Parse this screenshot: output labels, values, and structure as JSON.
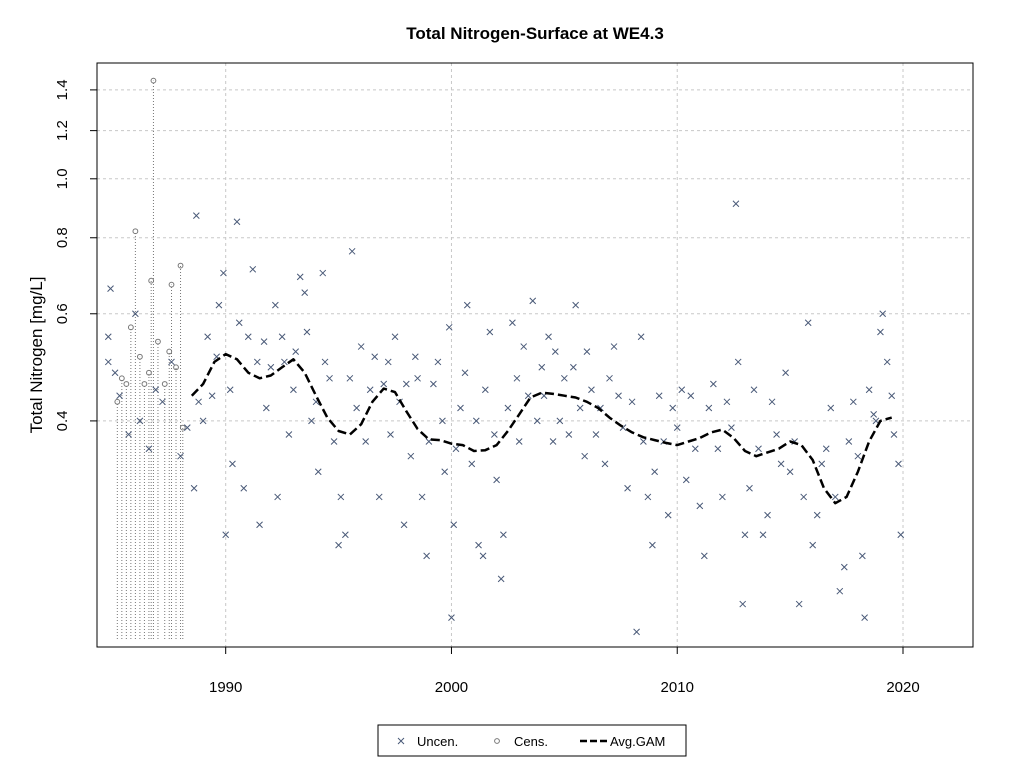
{
  "chart_data": {
    "type": "scatter",
    "title": "Total Nitrogen-Surface at WE4.3",
    "xlabel": "",
    "ylabel": "Total Nitrogen [mg/L]",
    "xlim": [
      1984.3,
      2023.1
    ],
    "ylim": [
      0.17,
      1.55
    ],
    "y_scale": "log",
    "grid": true,
    "x_ticks": [
      1990,
      2000,
      2010,
      2020
    ],
    "y_ticks": [
      0.4,
      0.6,
      0.8,
      1.0,
      1.2,
      1.4
    ],
    "x_tick_labels": [
      "1990",
      "2000",
      "2010",
      "2020"
    ],
    "y_tick_labels": [
      "0.4",
      "0.6",
      "0.8",
      "1.0",
      "1.2",
      "1.4"
    ],
    "legend_position": "bottom-center",
    "legend": [
      {
        "label": "Uncen.",
        "marker": "x",
        "color": "#4a5a78"
      },
      {
        "label": "Cens.",
        "marker": "o",
        "color": "#777777"
      },
      {
        "label": "Avg.GAM",
        "marker": "dashed-line",
        "color": "#000000"
      }
    ],
    "series": [
      {
        "name": "Uncen.",
        "marker": "x",
        "color": "#4a5a78",
        "points": [
          [
            1984.8,
            0.55
          ],
          [
            1984.8,
            0.5
          ],
          [
            1984.9,
            0.66
          ],
          [
            1985.1,
            0.48
          ],
          [
            1985.3,
            0.44
          ],
          [
            1985.7,
            0.38
          ],
          [
            1986.0,
            0.6
          ],
          [
            1986.2,
            0.4
          ],
          [
            1986.6,
            0.36
          ],
          [
            1986.9,
            0.45
          ],
          [
            1987.2,
            0.43
          ],
          [
            1987.6,
            0.5
          ],
          [
            1988.0,
            0.35
          ],
          [
            1988.3,
            0.39
          ],
          [
            1988.6,
            0.31
          ],
          [
            1988.7,
            0.87
          ],
          [
            1988.8,
            0.43
          ],
          [
            1989.0,
            0.4
          ],
          [
            1989.2,
            0.55
          ],
          [
            1989.4,
            0.44
          ],
          [
            1989.6,
            0.51
          ],
          [
            1989.7,
            0.62
          ],
          [
            1989.9,
            0.7
          ],
          [
            1990.0,
            0.26
          ],
          [
            1990.2,
            0.45
          ],
          [
            1990.3,
            0.34
          ],
          [
            1990.5,
            0.85
          ],
          [
            1990.6,
            0.58
          ],
          [
            1990.8,
            0.31
          ],
          [
            1991.0,
            0.55
          ],
          [
            1991.2,
            0.71
          ],
          [
            1991.4,
            0.5
          ],
          [
            1991.5,
            0.27
          ],
          [
            1991.7,
            0.54
          ],
          [
            1991.8,
            0.42
          ],
          [
            1992.0,
            0.49
          ],
          [
            1992.2,
            0.62
          ],
          [
            1992.3,
            0.3
          ],
          [
            1992.5,
            0.55
          ],
          [
            1992.6,
            0.5
          ],
          [
            1992.8,
            0.38
          ],
          [
            1993.0,
            0.45
          ],
          [
            1993.1,
            0.52
          ],
          [
            1993.3,
            0.69
          ],
          [
            1993.5,
            0.65
          ],
          [
            1993.6,
            0.56
          ],
          [
            1993.8,
            0.4
          ],
          [
            1994.0,
            0.43
          ],
          [
            1994.1,
            0.33
          ],
          [
            1994.3,
            0.7
          ],
          [
            1994.4,
            0.5
          ],
          [
            1994.6,
            0.47
          ],
          [
            1994.8,
            0.37
          ],
          [
            1995.0,
            0.25
          ],
          [
            1995.1,
            0.3
          ],
          [
            1995.3,
            0.26
          ],
          [
            1995.5,
            0.47
          ],
          [
            1995.6,
            0.76
          ],
          [
            1995.8,
            0.42
          ],
          [
            1996.0,
            0.53
          ],
          [
            1996.2,
            0.37
          ],
          [
            1996.4,
            0.45
          ],
          [
            1996.6,
            0.51
          ],
          [
            1996.8,
            0.3
          ],
          [
            1997.0,
            0.46
          ],
          [
            1997.2,
            0.5
          ],
          [
            1997.3,
            0.38
          ],
          [
            1997.5,
            0.55
          ],
          [
            1997.7,
            0.43
          ],
          [
            1997.9,
            0.27
          ],
          [
            1998.0,
            0.46
          ],
          [
            1998.2,
            0.35
          ],
          [
            1998.4,
            0.51
          ],
          [
            1998.5,
            0.47
          ],
          [
            1998.7,
            0.3
          ],
          [
            1998.9,
            0.24
          ],
          [
            1999.0,
            0.37
          ],
          [
            1999.2,
            0.46
          ],
          [
            1999.4,
            0.5
          ],
          [
            1999.6,
            0.4
          ],
          [
            1999.7,
            0.33
          ],
          [
            1999.9,
            0.57
          ],
          [
            2000.0,
            0.19
          ],
          [
            2000.1,
            0.27
          ],
          [
            2000.2,
            0.36
          ],
          [
            2000.4,
            0.42
          ],
          [
            2000.6,
            0.48
          ],
          [
            2000.7,
            0.62
          ],
          [
            2000.9,
            0.34
          ],
          [
            2001.1,
            0.4
          ],
          [
            2001.2,
            0.25
          ],
          [
            2001.4,
            0.24
          ],
          [
            2001.5,
            0.45
          ],
          [
            2001.7,
            0.56
          ],
          [
            2001.9,
            0.38
          ],
          [
            2002.0,
            0.32
          ],
          [
            2002.2,
            0.22
          ],
          [
            2002.3,
            0.26
          ],
          [
            2002.5,
            0.42
          ],
          [
            2002.7,
            0.58
          ],
          [
            2002.9,
            0.47
          ],
          [
            2003.0,
            0.37
          ],
          [
            2003.2,
            0.53
          ],
          [
            2003.4,
            0.44
          ],
          [
            2003.6,
            0.63
          ],
          [
            2003.8,
            0.4
          ],
          [
            2004.0,
            0.49
          ],
          [
            2004.1,
            0.44
          ],
          [
            2004.3,
            0.55
          ],
          [
            2004.5,
            0.37
          ],
          [
            2004.6,
            0.52
          ],
          [
            2004.8,
            0.4
          ],
          [
            2005.0,
            0.47
          ],
          [
            2005.2,
            0.38
          ],
          [
            2005.4,
            0.49
          ],
          [
            2005.5,
            0.62
          ],
          [
            2005.7,
            0.42
          ],
          [
            2005.9,
            0.35
          ],
          [
            2006.0,
            0.52
          ],
          [
            2006.2,
            0.45
          ],
          [
            2006.4,
            0.38
          ],
          [
            2006.6,
            0.42
          ],
          [
            2006.8,
            0.34
          ],
          [
            2007.0,
            0.47
          ],
          [
            2007.2,
            0.53
          ],
          [
            2007.4,
            0.44
          ],
          [
            2007.6,
            0.39
          ],
          [
            2007.8,
            0.31
          ],
          [
            2008.0,
            0.43
          ],
          [
            2008.2,
            0.18
          ],
          [
            2008.4,
            0.55
          ],
          [
            2008.5,
            0.37
          ],
          [
            2008.7,
            0.3
          ],
          [
            2008.9,
            0.25
          ],
          [
            2009.0,
            0.33
          ],
          [
            2009.2,
            0.44
          ],
          [
            2009.4,
            0.37
          ],
          [
            2009.6,
            0.28
          ],
          [
            2009.8,
            0.42
          ],
          [
            2010.0,
            0.39
          ],
          [
            2010.2,
            0.45
          ],
          [
            2010.4,
            0.32
          ],
          [
            2010.6,
            0.44
          ],
          [
            2010.8,
            0.36
          ],
          [
            2011.0,
            0.29
          ],
          [
            2011.2,
            0.24
          ],
          [
            2011.4,
            0.42
          ],
          [
            2011.6,
            0.46
          ],
          [
            2011.8,
            0.36
          ],
          [
            2012.0,
            0.3
          ],
          [
            2012.2,
            0.43
          ],
          [
            2012.4,
            0.39
          ],
          [
            2012.6,
            0.91
          ],
          [
            2012.7,
            0.5
          ],
          [
            2012.9,
            0.2
          ],
          [
            2013.0,
            0.26
          ],
          [
            2013.2,
            0.31
          ],
          [
            2013.4,
            0.45
          ],
          [
            2013.6,
            0.36
          ],
          [
            2013.8,
            0.26
          ],
          [
            2014.0,
            0.28
          ],
          [
            2014.2,
            0.43
          ],
          [
            2014.4,
            0.38
          ],
          [
            2014.6,
            0.34
          ],
          [
            2014.8,
            0.48
          ],
          [
            2015.0,
            0.33
          ],
          [
            2015.2,
            0.37
          ],
          [
            2015.4,
            0.2
          ],
          [
            2015.6,
            0.3
          ],
          [
            2015.8,
            0.58
          ],
          [
            2016.0,
            0.25
          ],
          [
            2016.2,
            0.28
          ],
          [
            2016.4,
            0.34
          ],
          [
            2016.6,
            0.36
          ],
          [
            2016.8,
            0.42
          ],
          [
            2017.0,
            0.3
          ],
          [
            2017.2,
            0.21
          ],
          [
            2017.4,
            0.23
          ],
          [
            2017.6,
            0.37
          ],
          [
            2017.8,
            0.43
          ],
          [
            2018.0,
            0.35
          ],
          [
            2018.2,
            0.24
          ],
          [
            2018.3,
            0.19
          ],
          [
            2018.5,
            0.45
          ],
          [
            2018.7,
            0.41
          ],
          [
            2018.8,
            0.4
          ],
          [
            2019.0,
            0.56
          ],
          [
            2019.1,
            0.6
          ],
          [
            2019.3,
            0.5
          ],
          [
            2019.5,
            0.44
          ],
          [
            2019.6,
            0.38
          ],
          [
            2019.8,
            0.34
          ],
          [
            2019.9,
            0.26
          ]
        ]
      },
      {
        "name": "Cens.",
        "marker": "o",
        "color": "#777777",
        "points": [
          [
            1985.2,
            0.43
          ],
          [
            1985.4,
            0.47
          ],
          [
            1985.6,
            0.46
          ],
          [
            1985.8,
            0.57
          ],
          [
            1986.0,
            0.82
          ],
          [
            1986.2,
            0.51
          ],
          [
            1986.4,
            0.46
          ],
          [
            1986.6,
            0.48
          ],
          [
            1986.7,
            0.68
          ],
          [
            1986.8,
            1.45
          ],
          [
            1987.0,
            0.54
          ],
          [
            1987.3,
            0.46
          ],
          [
            1987.5,
            0.52
          ],
          [
            1987.6,
            0.67
          ],
          [
            1987.8,
            0.49
          ],
          [
            1988.0,
            0.72
          ],
          [
            1988.1,
            0.39
          ]
        ]
      }
    ],
    "gam_curve": {
      "name": "Avg.GAM",
      "style": "dashed",
      "color": "#000000",
      "points": [
        [
          1988.5,
          0.44
        ],
        [
          1989.0,
          0.46
        ],
        [
          1989.5,
          0.5
        ],
        [
          1990.0,
          0.515
        ],
        [
          1990.5,
          0.505
        ],
        [
          1991.0,
          0.48
        ],
        [
          1991.5,
          0.47
        ],
        [
          1992.0,
          0.475
        ],
        [
          1992.5,
          0.49
        ],
        [
          1993.0,
          0.505
        ],
        [
          1993.5,
          0.48
        ],
        [
          1994.0,
          0.44
        ],
        [
          1994.5,
          0.405
        ],
        [
          1995.0,
          0.385
        ],
        [
          1995.5,
          0.38
        ],
        [
          1996.0,
          0.395
        ],
        [
          1996.5,
          0.43
        ],
        [
          1997.0,
          0.452
        ],
        [
          1997.5,
          0.446
        ],
        [
          1998.0,
          0.415
        ],
        [
          1998.5,
          0.388
        ],
        [
          1999.0,
          0.373
        ],
        [
          1999.5,
          0.372
        ],
        [
          2000.0,
          0.367
        ],
        [
          2000.5,
          0.365
        ],
        [
          2001.0,
          0.357
        ],
        [
          2001.5,
          0.358
        ],
        [
          2002.0,
          0.365
        ],
        [
          2002.5,
          0.385
        ],
        [
          2003.0,
          0.41
        ],
        [
          2003.5,
          0.437
        ],
        [
          2004.0,
          0.445
        ],
        [
          2004.5,
          0.443
        ],
        [
          2005.0,
          0.44
        ],
        [
          2005.5,
          0.437
        ],
        [
          2006.0,
          0.43
        ],
        [
          2006.5,
          0.42
        ],
        [
          2007.0,
          0.405
        ],
        [
          2007.5,
          0.393
        ],
        [
          2008.0,
          0.383
        ],
        [
          2008.5,
          0.376
        ],
        [
          2009.0,
          0.372
        ],
        [
          2009.5,
          0.368
        ],
        [
          2010.0,
          0.365
        ],
        [
          2010.5,
          0.37
        ],
        [
          2011.0,
          0.375
        ],
        [
          2011.5,
          0.383
        ],
        [
          2012.0,
          0.387
        ],
        [
          2012.5,
          0.375
        ],
        [
          2013.0,
          0.357
        ],
        [
          2013.5,
          0.35
        ],
        [
          2014.0,
          0.355
        ],
        [
          2014.5,
          0.36
        ],
        [
          2015.0,
          0.37
        ],
        [
          2015.5,
          0.365
        ],
        [
          2016.0,
          0.345
        ],
        [
          2016.5,
          0.31
        ],
        [
          2017.0,
          0.293
        ],
        [
          2017.5,
          0.3
        ],
        [
          2018.0,
          0.33
        ],
        [
          2018.5,
          0.37
        ],
        [
          2019.0,
          0.4
        ],
        [
          2019.5,
          0.405
        ]
      ]
    }
  }
}
